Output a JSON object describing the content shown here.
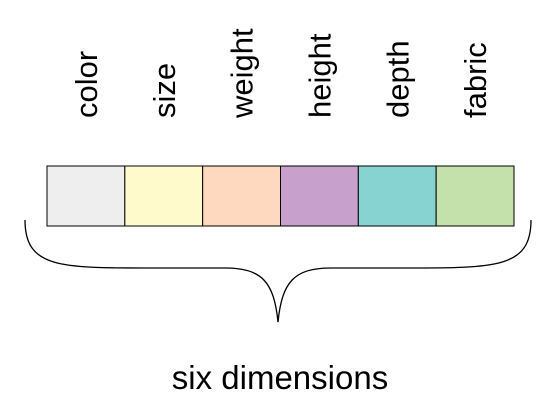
{
  "dimensions": [
    {
      "label": "color",
      "color": "#eeeeee"
    },
    {
      "label": "size",
      "color": "#fffacb"
    },
    {
      "label": "weight",
      "color": "#fed9c0"
    },
    {
      "label": "height",
      "color": "#c7a0cb"
    },
    {
      "label": "depth",
      "color": "#86d3d2"
    },
    {
      "label": "fabric",
      "color": "#c5e1ab"
    }
  ],
  "caption": "six dimensions"
}
